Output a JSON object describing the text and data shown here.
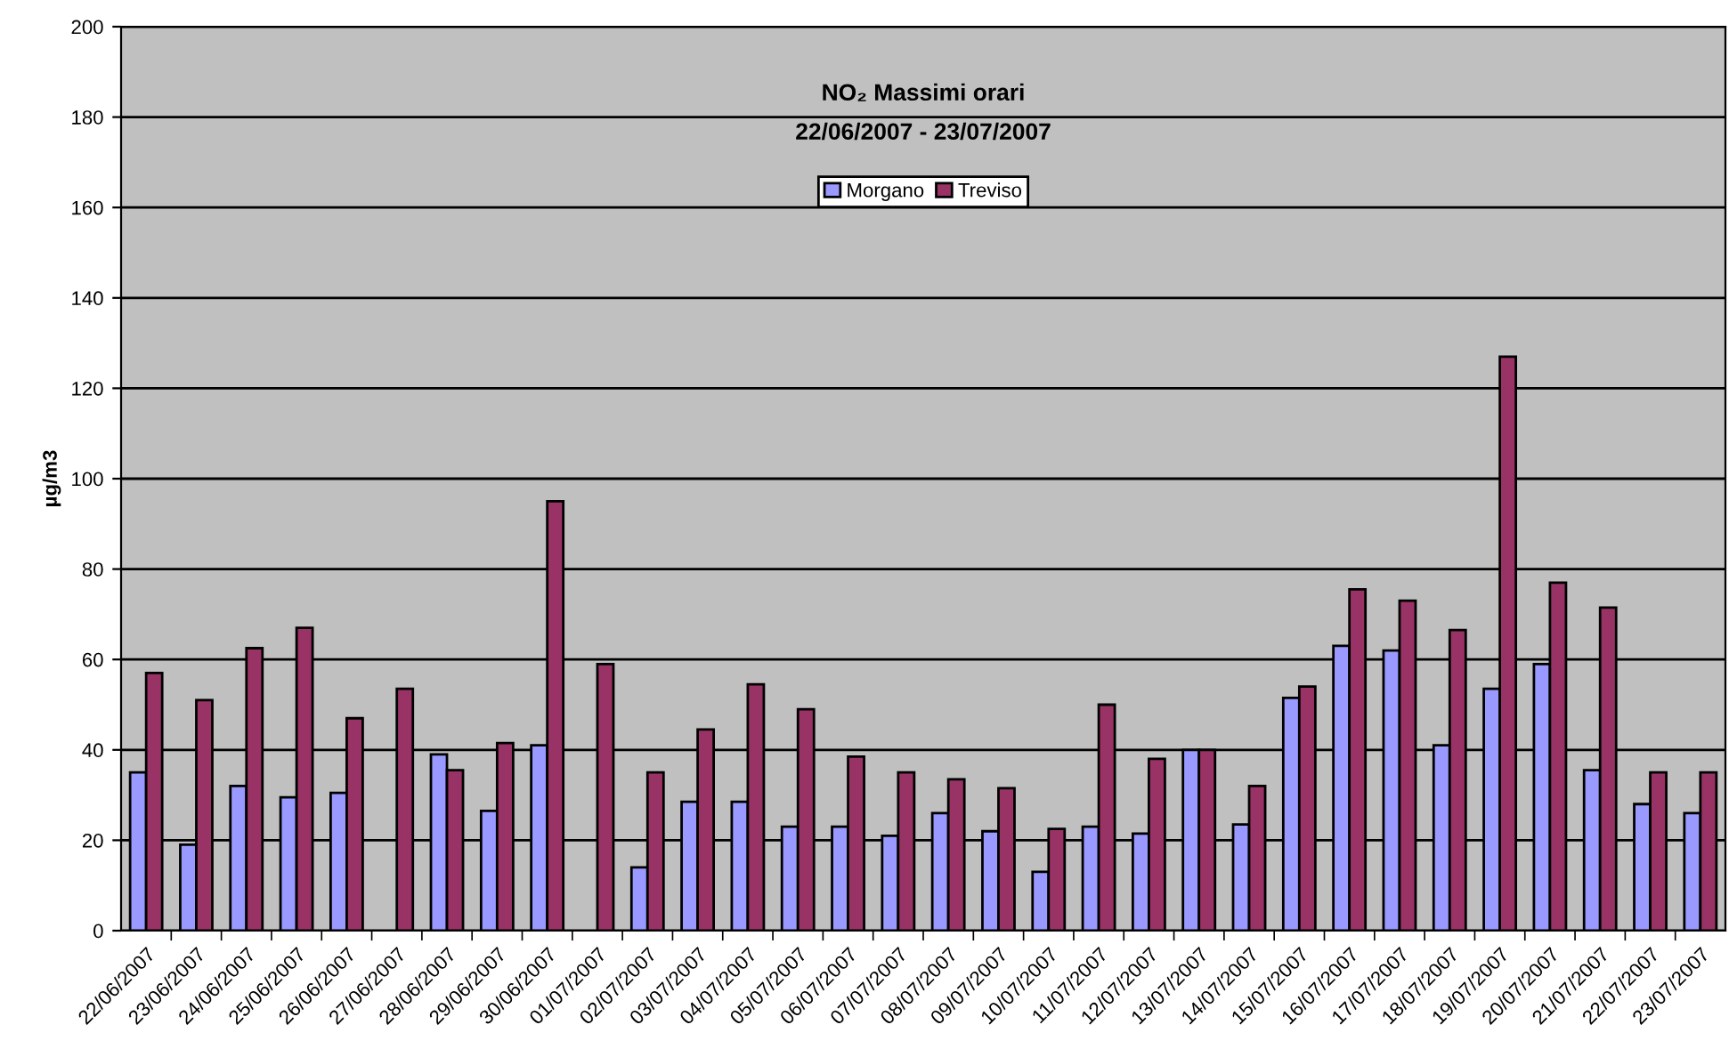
{
  "chart_data": {
    "type": "bar",
    "title": "NO₂ Massimi orari\n22/06/2007 - 23/07/2007",
    "ylabel": "µg/m3",
    "categories": [
      "22/06/2007",
      "23/06/2007",
      "24/06/2007",
      "25/06/2007",
      "26/06/2007",
      "27/06/2007",
      "28/06/2007",
      "29/06/2007",
      "30/06/2007",
      "01/07/2007",
      "02/07/2007",
      "03/07/2007",
      "04/07/2007",
      "05/07/2007",
      "06/07/2007",
      "07/07/2007",
      "08/07/2007",
      "09/07/2007",
      "10/07/2007",
      "11/07/2007",
      "12/07/2007",
      "13/07/2007",
      "14/07/2007",
      "15/07/2007",
      "16/07/2007",
      "17/07/2007",
      "18/07/2007",
      "19/07/2007",
      "20/07/2007",
      "21/07/2007",
      "22/07/2007",
      "23/07/2007"
    ],
    "series": [
      {
        "name": "Morgano",
        "color": "#9999ff",
        "values": [
          35,
          19,
          32,
          29.5,
          30.5,
          null,
          39,
          26.5,
          41,
          null,
          14,
          28.5,
          28.5,
          23,
          23,
          21,
          26,
          22,
          13,
          23,
          21.5,
          40,
          23.5,
          51.5,
          63,
          62,
          41,
          53.5,
          59,
          35.5,
          28,
          26
        ]
      },
      {
        "name": "Treviso",
        "color": "#993366",
        "values": [
          57,
          51,
          62.5,
          67,
          47,
          53.5,
          35.5,
          41.5,
          95,
          59,
          35,
          44.5,
          54.5,
          49,
          38.5,
          35,
          33.5,
          31.5,
          22.5,
          50,
          38,
          40,
          32,
          54,
          75.5,
          73,
          66.5,
          127,
          77,
          71.5,
          35,
          35
        ]
      }
    ],
    "ylim": [
      0,
      200
    ],
    "yticks": [
      0,
      20,
      40,
      60,
      80,
      100,
      120,
      140,
      160,
      180,
      200
    ],
    "grid": "y",
    "legend": "top"
  }
}
